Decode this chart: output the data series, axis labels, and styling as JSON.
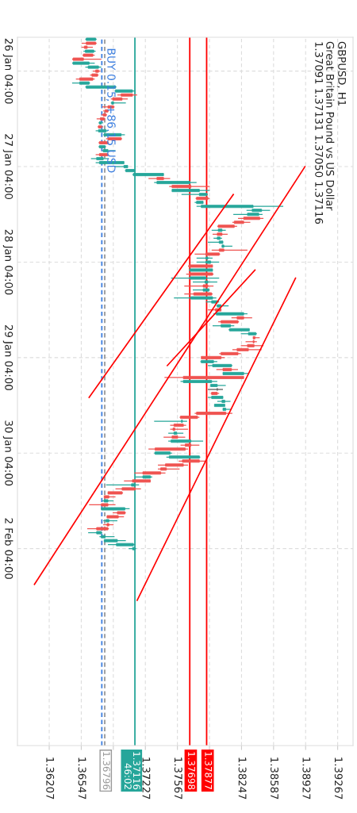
{
  "chart_data": {
    "type": "candlestick",
    "orientation": "horizontal",
    "title": "GBPUSD, H1",
    "subtitle": "Great Britain Pound vs US Dollar",
    "annotations": [
      "1.37091 1.37131 1.37050 1.37116",
      {
        "text": "BUY 0.15, +86.15 USD",
        "x": 1.36765
      }
    ],
    "categories": [
      null,
      null,
      null,
      null,
      null,
      null,
      null,
      null,
      "26 Jan 04:00",
      null,
      null,
      null,
      null,
      null,
      null,
      null,
      null,
      null,
      null,
      null,
      null,
      null,
      null,
      null,
      null,
      null,
      null,
      null,
      null,
      null,
      null,
      null,
      "27 Jan 04:00",
      null,
      null,
      null,
      null,
      null,
      null,
      null,
      null,
      null,
      null,
      null,
      null,
      null,
      null,
      null,
      null,
      null,
      null,
      null,
      null,
      null,
      null,
      null,
      "28 Jan 04:00",
      null,
      null,
      null,
      null,
      null,
      null,
      null,
      null,
      null,
      null,
      null,
      null,
      null,
      null,
      null,
      null,
      null,
      null,
      null,
      null,
      null,
      null,
      null,
      "29 Jan 04:00",
      null,
      null,
      null,
      null,
      null,
      null,
      null,
      null,
      null,
      null,
      null,
      null,
      null,
      null,
      null,
      null,
      null,
      null,
      null,
      null,
      null,
      null,
      null,
      "30 Jan 04:00",
      null,
      null,
      null,
      null,
      null,
      null,
      null,
      null,
      null,
      null,
      null,
      null,
      null,
      null,
      null,
      null,
      null,
      null,
      null,
      null,
      null,
      null,
      null,
      "2 Feb 04:00",
      null,
      null,
      null,
      null,
      null,
      null,
      null,
      null,
      null,
      null,
      null,
      null,
      null,
      null,
      null,
      null,
      null,
      null,
      null,
      null,
      null,
      null,
      null,
      null,
      null,
      null,
      null,
      null,
      null,
      null,
      null,
      null,
      null,
      null,
      null,
      null,
      null,
      null,
      null,
      null,
      null,
      null,
      null,
      null,
      null,
      null,
      null,
      null,
      null
    ],
    "ohlc": [
      [
        1.366,
        1.3671,
        1.3659,
        1.367
      ],
      [
        1.367,
        1.3671,
        1.3655,
        1.366
      ],
      [
        1.3661,
        1.3667,
        1.3655,
        1.3658
      ],
      [
        1.3659,
        1.367,
        1.3657,
        1.3668
      ],
      [
        1.3667,
        1.3669,
        1.3656,
        1.3657
      ],
      [
        1.3657,
        1.3676,
        1.3645,
        1.3646
      ],
      [
        1.3646,
        1.3669,
        1.3645,
        1.3663
      ],
      [
        1.3662,
        1.3676,
        1.3659,
        1.3673
      ],
      [
        1.3673,
        1.3675,
        1.3667,
        1.367
      ],
      [
        1.3672,
        1.3673,
        1.3664,
        1.3666
      ],
      [
        1.3667,
        1.3669,
        1.3649,
        1.3653
      ],
      [
        1.3653,
        1.3664,
        1.3645,
        1.3663
      ],
      [
        1.366,
        1.3692,
        1.3659,
        1.3691
      ],
      [
        1.3691,
        1.3712,
        1.369,
        1.3709
      ],
      [
        1.3709,
        1.3714,
        1.3693,
        1.3697
      ],
      [
        1.3698,
        1.3704,
        1.3686,
        1.3688
      ],
      [
        1.3687,
        1.3702,
        1.3686,
        1.3689
      ],
      [
        1.3689,
        1.369,
        1.3677,
        1.3683
      ],
      [
        1.3683,
        1.3684,
        1.3678,
        1.368
      ],
      [
        1.3681,
        1.3682,
        1.3676,
        1.3678
      ],
      [
        1.3679,
        1.368,
        1.3671,
        1.3675
      ],
      [
        1.3674,
        1.3678,
        1.3673,
        1.3676
      ],
      [
        1.3676,
        1.3678,
        1.3672,
        1.3673
      ],
      [
        1.3673,
        1.3683,
        1.367,
        1.3681
      ],
      [
        1.3679,
        1.3701,
        1.3678,
        1.3697
      ],
      [
        1.3697,
        1.3698,
        1.3681,
        1.3683
      ],
      [
        1.3683,
        1.3684,
        1.3673,
        1.3674
      ],
      [
        1.3674,
        1.3681,
        1.3673,
        1.368
      ],
      [
        1.3678,
        1.3691,
        1.3677,
        1.3683
      ],
      [
        1.3683,
        1.3684,
        1.367,
        1.3674
      ],
      [
        1.3671,
        1.3684,
        1.3665,
        1.3678
      ],
      [
        1.3674,
        1.37,
        1.367,
        1.37
      ],
      [
        1.37,
        1.3704,
        1.369,
        1.3704
      ],
      [
        1.3702,
        1.3712,
        1.3701,
        1.3711
      ],
      [
        1.371,
        1.3742,
        1.3709,
        1.3742
      ],
      [
        1.3742,
        1.3749,
        1.3726,
        1.3735
      ],
      [
        1.3735,
        1.3777,
        1.3732,
        1.377
      ],
      [
        1.3771,
        1.3791,
        1.3748,
        1.3751
      ],
      [
        1.3751,
        1.3791,
        1.3751,
        1.378
      ],
      [
        1.378,
        1.3789,
        1.3761,
        1.3788
      ],
      [
        1.3789,
        1.3791,
        1.3776,
        1.3777
      ],
      [
        1.3777,
        1.3784,
        1.3775,
        1.3784
      ],
      [
        1.3782,
        1.3869,
        1.3777,
        1.3837
      ],
      [
        1.3836,
        1.3855,
        1.383,
        1.3846
      ],
      [
        1.3831,
        1.3847,
        1.3816,
        1.3843
      ],
      [
        1.3844,
        1.3848,
        1.3821,
        1.3827
      ],
      [
        1.3827,
        1.3834,
        1.3815,
        1.3817
      ],
      [
        1.3817,
        1.382,
        1.3799,
        1.38
      ],
      [
        1.38,
        1.3808,
        1.3793,
        1.3804
      ],
      [
        1.3804,
        1.381,
        1.3794,
        1.3799
      ],
      [
        1.3799,
        1.3804,
        1.3795,
        1.3802
      ],
      [
        1.3801,
        1.3805,
        1.3789,
        1.3805
      ],
      [
        1.3804,
        1.3815,
        1.3804,
        1.3806
      ],
      [
        1.3806,
        1.3831,
        1.3793,
        1.3801
      ],
      [
        1.3801,
        1.3802,
        1.3775,
        1.3787
      ],
      [
        1.3787,
        1.3794,
        1.3777,
        1.3789
      ],
      [
        1.3787,
        1.3801,
        1.3777,
        1.3792
      ],
      [
        1.3794,
        1.3794,
        1.3768,
        1.3769
      ],
      [
        1.377,
        1.3794,
        1.3769,
        1.3794
      ],
      [
        1.3794,
        1.3795,
        1.3766,
        1.377
      ],
      [
        1.377,
        1.3801,
        1.375,
        1.3787
      ],
      [
        1.3786,
        1.3799,
        1.3773,
        1.3789
      ],
      [
        1.3789,
        1.3795,
        1.3764,
        1.3784
      ],
      [
        1.3784,
        1.3791,
        1.3773,
        1.379
      ],
      [
        1.3793,
        1.3794,
        1.3764,
        1.3774
      ],
      [
        1.3771,
        1.3798,
        1.3753,
        1.3794
      ],
      [
        1.3793,
        1.3801,
        1.3787,
        1.3799
      ],
      [
        1.3799,
        1.3811,
        1.3798,
        1.3803
      ],
      [
        1.3803,
        1.3803,
        1.3789,
        1.3797
      ],
      [
        1.3798,
        1.3831,
        1.3795,
        1.3827
      ],
      [
        1.3827,
        1.3836,
        1.3814,
        1.382
      ],
      [
        1.3821,
        1.3822,
        1.38,
        1.3803
      ],
      [
        1.3803,
        1.3817,
        1.3794,
        1.3813
      ],
      [
        1.3812,
        1.3833,
        1.3811,
        1.3833
      ],
      [
        1.3832,
        1.3841,
        1.3824,
        1.384
      ],
      [
        1.3839,
        1.3844,
        1.3837,
        1.3837
      ],
      [
        1.3838,
        1.3841,
        1.3829,
        1.3837
      ],
      [
        1.3838,
        1.3848,
        1.3824,
        1.3831
      ],
      [
        1.3832,
        1.3846,
        1.3815,
        1.382
      ],
      [
        1.3821,
        1.3824,
        1.3801,
        1.3803
      ],
      [
        1.3803,
        1.3807,
        1.3782,
        1.3782
      ],
      [
        1.3782,
        1.3799,
        1.3781,
        1.3795
      ],
      [
        1.3794,
        1.3815,
        1.3789,
        1.3814
      ],
      [
        1.3814,
        1.3821,
        1.3798,
        1.3805
      ],
      [
        1.3805,
        1.3832,
        1.3805,
        1.3827
      ],
      [
        1.3827,
        1.3827,
        1.3743,
        1.3763
      ],
      [
        1.3763,
        1.3799,
        1.376,
        1.3793
      ],
      [
        1.3792,
        1.3808,
        1.3792,
        1.3799
      ],
      [
        1.3799,
        1.3805,
        1.3789,
        1.3799
      ],
      [
        1.3799,
        1.3801,
        1.3792,
        1.3793
      ],
      [
        1.3793,
        1.3805,
        1.3789,
        1.3805
      ],
      [
        1.3804,
        1.3813,
        1.3799,
        1.3807
      ],
      [
        1.3796,
        1.3807,
        1.3796,
        1.3807
      ],
      [
        1.3805,
        1.3814,
        1.3805,
        1.3808
      ],
      [
        1.3808,
        1.3815,
        1.3775,
        1.3777
      ],
      [
        1.3778,
        1.378,
        1.3759,
        1.376
      ],
      [
        1.3761,
        1.3767,
        1.3732,
        1.3762
      ],
      [
        1.3763,
        1.3766,
        1.3749,
        1.3753
      ],
      [
        1.3754,
        1.3768,
        1.3749,
        1.3752
      ],
      [
        1.3753,
        1.3763,
        1.3747,
        1.3756
      ],
      [
        1.3757,
        1.3765,
        1.3742,
        1.3751
      ],
      [
        1.375,
        1.3784,
        1.3747,
        1.3771
      ],
      [
        1.3771,
        1.378,
        1.376,
        1.3765
      ],
      [
        1.3765,
        1.3768,
        1.3726,
        1.3733
      ],
      [
        1.3733,
        1.3751,
        1.3732,
        1.3749
      ],
      [
        1.3748,
        1.3781,
        1.3745,
        1.378
      ],
      [
        1.378,
        1.3788,
        1.3758,
        1.3762
      ],
      [
        1.3763,
        1.3768,
        1.3736,
        1.3744
      ],
      [
        1.3745,
        1.3759,
        1.3736,
        1.3739
      ],
      [
        1.3739,
        1.3744,
        1.3711,
        1.372
      ],
      [
        1.372,
        1.373,
        1.3712,
        1.3728
      ],
      [
        1.3728,
        1.3728,
        1.37,
        1.3709
      ],
      [
        1.3708,
        1.3716,
        1.3681,
        1.3712
      ],
      [
        1.3712,
        1.3718,
        1.3691,
        1.3698
      ],
      [
        1.3698,
        1.3699,
        1.3683,
        1.3683
      ],
      [
        1.3684,
        1.3691,
        1.3679,
        1.3679
      ],
      [
        1.3679,
        1.3689,
        1.3677,
        1.3683
      ],
      [
        1.3683,
        1.3691,
        1.3663,
        1.3676
      ],
      [
        1.3676,
        1.3706,
        1.3676,
        1.3701
      ],
      [
        1.3701,
        1.3702,
        1.3688,
        1.3693
      ],
      [
        1.3694,
        1.37,
        1.3682,
        1.3682
      ],
      [
        1.3681,
        1.3693,
        1.3678,
        1.3684
      ],
      [
        1.3684,
        1.3689,
        1.3678,
        1.3682
      ],
      [
        1.3683,
        1.3684,
        1.3661,
        1.3671
      ],
      [
        1.3671,
        1.3677,
        1.3662,
        1.3676
      ],
      [
        1.3676,
        1.369,
        1.3674,
        1.368
      ],
      [
        1.3679,
        1.3702,
        1.3679,
        1.3693
      ],
      [
        1.3692,
        1.3712,
        1.3683,
        1.371
      ],
      [
        1.37091,
        1.37131,
        1.3705,
        1.37116
      ],
      null,
      null,
      null,
      null,
      null,
      null,
      null,
      null,
      null,
      null,
      null,
      null,
      null,
      null,
      null,
      null,
      null,
      null,
      null,
      null,
      null,
      null,
      null,
      null,
      null,
      null,
      null,
      null,
      null,
      null,
      null,
      null,
      null,
      null,
      null,
      null,
      null,
      null,
      null,
      null,
      null,
      null,
      null,
      null,
      null,
      null,
      null,
      null,
      null
    ],
    "colors": [
      "#26a69a",
      "#ef5350",
      "#ef5350",
      "#26a69a",
      "#ef5350",
      "#ef5350",
      "#26a69a",
      "#26a69a",
      "#ef5350",
      "#ef5350",
      "#ef5350",
      "#26a69a",
      "#26a69a",
      "#26a69a",
      "#ef5350",
      "#ef5350",
      "#26a69a",
      "#ef5350",
      "#ef5350",
      "#ef5350",
      "#ef5350",
      "#26a69a",
      "#ef5350",
      "#26a69a",
      "#26a69a",
      "#ef5350",
      "#ef5350",
      "#26a69a",
      "#26a69a",
      "#ef5350",
      "#26a69a",
      "#26a69a",
      "#26a69a",
      "#26a69a",
      "#26a69a",
      "#ef5350",
      "#26a69a",
      "#ef5350",
      "#26a69a",
      "#26a69a",
      "#ef5350",
      "#26a69a",
      "#26a69a",
      "#26a69a",
      "#26a69a",
      "#ef5350",
      "#ef5350",
      "#ef5350",
      "#26a69a",
      "#ef5350",
      "#26a69a",
      "#26a69a",
      "#26a69a",
      "#ef5350",
      "#ef5350",
      "#26a69a",
      "#26a69a",
      "#ef5350",
      "#26a69a",
      "#ef5350",
      "#26a69a",
      "#26a69a",
      "#ef5350",
      "#26a69a",
      "#ef5350",
      "#26a69a",
      "#26a69a",
      "#26a69a",
      "#ef5350",
      "#26a69a",
      "#ef5350",
      "#ef5350",
      "#26a69a",
      "#26a69a",
      "#26a69a",
      "#ef5350",
      "#ef5350",
      "#ef5350",
      "#ef5350",
      "#ef5350",
      "#ef5350",
      "#26a69a",
      "#26a69a",
      "#ef5350",
      "#26a69a",
      "#ef5350",
      "#26a69a",
      "#26a69a",
      "#555555",
      "#ef5350",
      "#26a69a",
      "#26a69a",
      "#26a69a",
      "#26a69a",
      "#ef5350",
      "#ef5350",
      "#26a69a",
      "#ef5350",
      "#ef5350",
      "#26a69a",
      "#ef5350",
      "#26a69a",
      "#ef5350",
      "#ef5350",
      "#26a69a",
      "#26a69a",
      "#ef5350",
      "#ef5350",
      "#ef5350",
      "#ef5350",
      "#26a69a",
      "#ef5350",
      "#26a69a",
      "#ef5350",
      "#ef5350",
      "#ef5350",
      "#26a69a",
      "#ef5350",
      "#26a69a",
      "#ef5350",
      "#ef5350",
      "#26a69a",
      "#ef5350",
      "#ef5350",
      "#26a69a",
      "#26a69a",
      "#26a69a",
      "#26a69a",
      "#26a69a",
      null,
      null,
      null,
      null,
      null,
      null,
      null,
      null,
      null,
      null,
      null,
      null,
      null,
      null,
      null,
      null,
      null,
      null,
      null,
      null,
      null,
      null,
      null,
      null,
      null,
      null,
      null,
      null,
      null,
      null,
      null,
      null,
      null,
      null,
      null,
      null,
      null,
      null,
      null,
      null,
      null,
      null,
      null,
      null,
      null,
      null,
      null,
      null,
      null
    ],
    "series": [
      {
        "type": "line",
        "color": "#ff0000",
        "values": [
          null,
          null,
          null,
          null,
          null,
          null,
          null,
          null,
          null,
          null,
          null,
          null,
          null,
          null,
          null,
          null,
          null,
          null,
          null,
          null,
          null,
          null,
          null,
          null,
          null,
          null,
          null,
          null,
          null,
          null,
          null,
          null,
          null,
          null,
          null,
          null,
          null,
          null,
          null,
          1.3816,
          null,
          null,
          null,
          null,
          null,
          null,
          null,
          null,
          null,
          null,
          null,
          null,
          null,
          null,
          null,
          null,
          null,
          null,
          null,
          null,
          null,
          null,
          null,
          null,
          null,
          null,
          null,
          null,
          null,
          null,
          null,
          null,
          null,
          null,
          null,
          null,
          null,
          null,
          null,
          null,
          null,
          null,
          null,
          null,
          null,
          null,
          null,
          null,
          null,
          null,
          1.3663,
          null,
          null,
          null,
          null,
          null,
          null,
          null,
          null,
          null,
          null,
          null,
          null,
          null,
          null,
          null,
          null,
          null,
          null,
          null,
          null,
          null,
          null,
          null,
          null,
          null,
          null,
          null,
          null,
          null,
          null,
          null,
          null,
          null,
          null,
          null,
          null,
          null,
          null,
          null,
          null,
          null,
          null,
          null,
          null,
          null,
          null,
          null,
          null,
          null,
          null,
          null,
          null,
          null,
          null,
          null,
          null,
          null,
          null,
          null,
          null,
          null,
          null,
          null,
          null,
          null,
          null,
          null,
          null,
          null,
          null,
          null,
          null,
          null,
          null,
          null,
          null,
          null,
          null,
          null,
          null,
          null,
          null,
          null,
          null,
          null,
          null,
          null
        ]
      },
      {
        "type": "line",
        "color": "#ff0000",
        "values": [
          null,
          null,
          null,
          null,
          null,
          null,
          null,
          null,
          null,
          null,
          null,
          null,
          null,
          null,
          null,
          null,
          null,
          null,
          null,
          null,
          null,
          null,
          null,
          null,
          null,
          null,
          null,
          null,
          null,
          null,
          null,
          null,
          1.3892,
          null,
          null,
          null,
          null,
          null,
          null,
          null,
          null,
          null,
          null,
          null,
          null,
          null,
          null,
          null,
          null,
          null,
          null,
          null,
          null,
          null,
          null,
          null,
          null,
          null,
          null,
          null,
          null,
          null,
          null,
          null,
          null,
          null,
          null,
          null,
          null,
          null,
          null,
          null,
          null,
          null,
          null,
          null,
          null,
          null,
          null,
          null,
          null,
          null,
          null,
          null,
          null,
          null,
          null,
          null,
          null,
          null,
          null,
          null,
          null,
          null,
          null,
          null,
          null,
          null,
          null,
          null,
          null,
          null,
          null,
          null,
          null,
          null,
          null,
          null,
          null,
          null,
          null,
          null,
          null,
          null,
          null,
          null,
          null,
          null,
          null,
          null,
          null,
          null,
          null,
          null,
          null,
          null,
          null,
          null,
          null,
          null,
          null,
          null,
          null,
          null,
          null,
          null,
          null,
          1.3605,
          null,
          null,
          null,
          null,
          null,
          null,
          null,
          null,
          null,
          null,
          null,
          null,
          null,
          null,
          null,
          null,
          null,
          null,
          null,
          null,
          null,
          null,
          null,
          null,
          null,
          null,
          null,
          null,
          null,
          null,
          null,
          null,
          null,
          null,
          null,
          null,
          null,
          null,
          null,
          null
        ]
      },
      {
        "type": "line",
        "color": "#ff0000",
        "values": [
          null,
          null,
          null,
          null,
          null,
          null,
          null,
          null,
          null,
          null,
          null,
          null,
          null,
          null,
          null,
          null,
          null,
          null,
          null,
          null,
          null,
          null,
          null,
          null,
          null,
          null,
          null,
          null,
          null,
          null,
          null,
          null,
          null,
          null,
          null,
          null,
          null,
          null,
          null,
          null,
          null,
          null,
          null,
          null,
          null,
          null,
          null,
          null,
          null,
          null,
          null,
          null,
          null,
          null,
          null,
          null,
          null,
          null,
          1.3839,
          null,
          null,
          null,
          null,
          null,
          null,
          null,
          null,
          null,
          null,
          null,
          null,
          null,
          null,
          null,
          null,
          null,
          null,
          null,
          null,
          null,
          null,
          null,
          1.3746,
          null,
          null,
          null,
          null,
          null,
          null,
          null,
          null,
          null,
          null,
          null,
          null,
          null,
          null,
          null,
          null,
          null,
          null,
          null,
          null,
          null,
          null,
          null,
          null,
          null,
          null,
          null,
          null,
          null,
          null,
          null,
          null,
          null,
          null,
          null,
          null,
          null,
          null,
          null,
          null,
          null,
          null,
          null,
          null,
          null,
          null,
          null,
          null,
          null,
          null,
          null,
          null,
          null,
          null,
          null,
          null,
          null,
          null,
          null,
          null,
          null,
          null,
          null,
          null,
          null,
          null,
          null,
          null,
          null,
          null,
          null,
          null,
          null,
          null,
          null,
          null,
          null,
          null,
          null,
          null,
          null,
          null,
          null,
          null,
          null,
          null,
          null,
          null,
          null,
          null,
          null,
          null,
          null,
          null,
          null
        ]
      },
      {
        "type": "line",
        "color": "#ff0000",
        "values": [
          null,
          null,
          null,
          null,
          null,
          null,
          null,
          null,
          null,
          null,
          null,
          null,
          null,
          null,
          null,
          null,
          null,
          null,
          null,
          null,
          null,
          null,
          null,
          null,
          null,
          null,
          null,
          null,
          null,
          null,
          null,
          null,
          null,
          null,
          null,
          null,
          null,
          null,
          null,
          null,
          null,
          null,
          null,
          null,
          null,
          null,
          null,
          null,
          null,
          null,
          null,
          null,
          null,
          null,
          null,
          null,
          null,
          null,
          null,
          null,
          1.3882,
          null,
          null,
          null,
          null,
          null,
          null,
          null,
          null,
          null,
          null,
          null,
          null,
          null,
          null,
          null,
          null,
          null,
          null,
          null,
          null,
          null,
          null,
          null,
          null,
          null,
          null,
          null,
          null,
          null,
          null,
          null,
          null,
          null,
          null,
          null,
          null,
          null,
          null,
          null,
          null,
          null,
          null,
          null,
          null,
          null,
          null,
          null,
          null,
          null,
          null,
          null,
          null,
          null,
          null,
          null,
          null,
          null,
          null,
          null,
          null,
          null,
          null,
          null,
          null,
          null,
          null,
          null,
          null,
          null,
          null,
          null,
          null,
          null,
          null,
          null,
          null,
          null,
          null,
          null,
          null,
          1.3714,
          null,
          null,
          null,
          null,
          null,
          null,
          null,
          null,
          null,
          null,
          null,
          null,
          null,
          null,
          null,
          null,
          null,
          null,
          null,
          null,
          null,
          null,
          null,
          null,
          null,
          null,
          null,
          null,
          null,
          null,
          null,
          null,
          null,
          null,
          null,
          null
        ]
      }
    ],
    "ref_lines": [
      {
        "axis": "x",
        "value": 1.37698,
        "label": "1.37698",
        "color": "#ff0000"
      },
      {
        "axis": "x",
        "value": 1.37877,
        "label": "1.37877",
        "color": "#ff0000"
      },
      {
        "axis": "x",
        "value": 1.37116,
        "label": "1.37116\n46:02",
        "color": "#26a69a"
      },
      {
        "axis": "x",
        "value": 1.36765,
        "color": "#3d7fe0",
        "line_style": "dashed"
      },
      {
        "axis": "x",
        "value": 1.36796,
        "label": "1.36796",
        "color": "#999999",
        "line_style": "dashed"
      }
    ],
    "xlim": [
      1.3587,
      1.3943
    ],
    "xticks": [
      1.36207,
      1.36547,
      {
        "value": 1.36887,
        "label": null
      },
      1.37227,
      1.37567,
      {
        "value": 1.37907,
        "label": null
      },
      1.38247,
      1.38587,
      1.38927,
      1.39267
    ],
    "grid": true
  }
}
